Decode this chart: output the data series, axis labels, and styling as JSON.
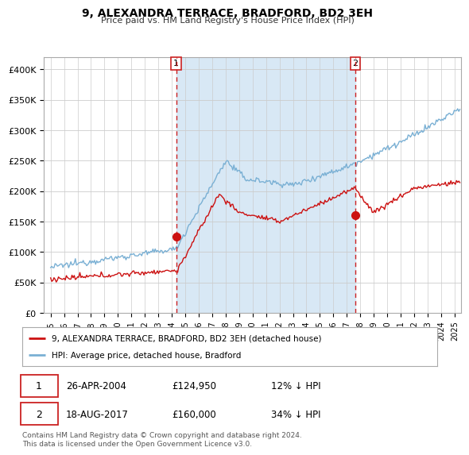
{
  "title": "9, ALEXANDRA TERRACE, BRADFORD, BD2 3EH",
  "subtitle": "Price paid vs. HM Land Registry's House Price Index (HPI)",
  "ylabel_ticks": [
    "£0",
    "£50K",
    "£100K",
    "£150K",
    "£200K",
    "£250K",
    "£300K",
    "£350K",
    "£400K"
  ],
  "ytick_values": [
    0,
    50000,
    100000,
    150000,
    200000,
    250000,
    300000,
    350000,
    400000
  ],
  "ylim": [
    0,
    420000
  ],
  "xlim_start": 1994.5,
  "xlim_end": 2025.5,
  "hpi_color": "#7ab0d4",
  "price_color": "#cc1111",
  "dashed_line_color": "#cc2222",
  "shade_color": "#d8e8f5",
  "marker1_x": 2004.32,
  "marker1_y": 124950,
  "marker2_x": 2017.63,
  "marker2_y": 160000,
  "legend_label1": "9, ALEXANDRA TERRACE, BRADFORD, BD2 3EH (detached house)",
  "legend_label2": "HPI: Average price, detached house, Bradford",
  "table_row1": [
    "1",
    "26-APR-2004",
    "£124,950",
    "12% ↓ HPI"
  ],
  "table_row2": [
    "2",
    "18-AUG-2017",
    "£160,000",
    "34% ↓ HPI"
  ],
  "footnote": "Contains HM Land Registry data © Crown copyright and database right 2024.\nThis data is licensed under the Open Government Licence v3.0.",
  "background_color": "#ffffff"
}
